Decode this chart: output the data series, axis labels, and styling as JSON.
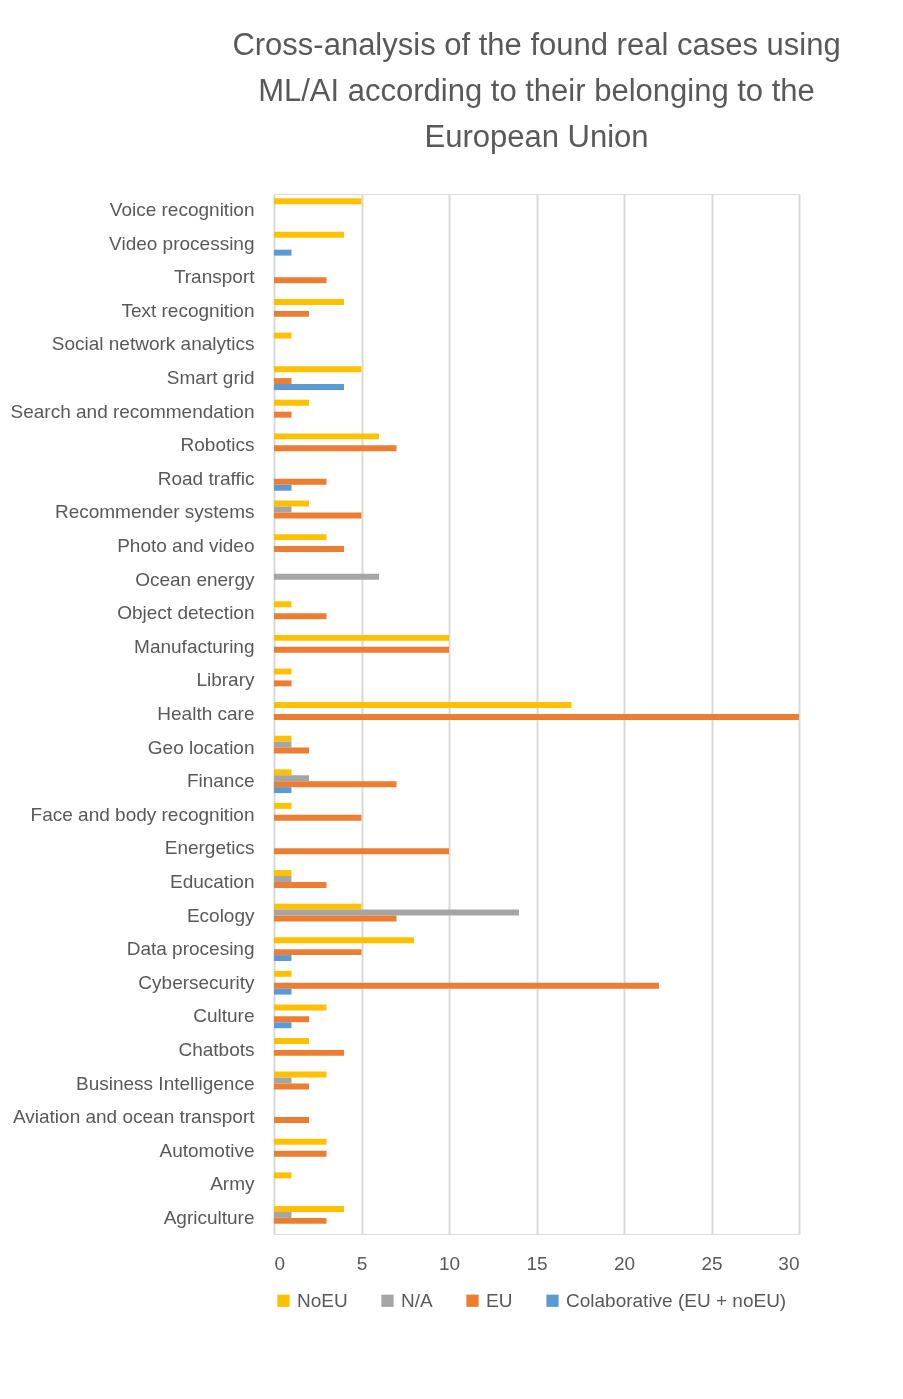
{
  "chart_data": {
    "type": "bar",
    "orientation": "horizontal",
    "title": "Cross-analysis of the found real cases using ML/AI according to their belonging to the European Union",
    "categories": [
      "Voice recognition",
      "Video processing",
      "Transport",
      "Text recognition",
      "Social network analytics",
      "Smart grid",
      "Search and recommendation",
      "Robotics",
      "Road traffic",
      "Recommender systems",
      "Photo and video",
      "Ocean energy",
      "Object detection",
      "Manufacturing",
      "Library",
      "Health care",
      "Geo location",
      "Finance",
      "Face and body recognition",
      "Energetics",
      "Education",
      "Ecology",
      "Data procesing",
      "Cybersecurity",
      "Culture",
      "Chatbots",
      "Business Intelligence",
      "Aviation and ocean transport",
      "Automotive",
      "Army",
      "Agriculture"
    ],
    "series": [
      {
        "name": "NoEU",
        "color": "#ffc000",
        "values": [
          5,
          4,
          0,
          4,
          1,
          5,
          2,
          6,
          0,
          2,
          3,
          0,
          1,
          10,
          1,
          17,
          1,
          1,
          1,
          0,
          1,
          5,
          8,
          1,
          3,
          2,
          3,
          0,
          3,
          1,
          4
        ]
      },
      {
        "name": "N/A",
        "color": "#a5a5a5",
        "values": [
          0,
          0,
          0,
          0,
          0,
          0,
          0,
          0,
          0,
          1,
          0,
          6,
          0,
          0,
          0,
          0,
          1,
          2,
          0,
          0,
          1,
          14,
          0,
          0,
          0,
          0,
          1,
          0,
          0,
          0,
          1
        ]
      },
      {
        "name": "EU",
        "color": "#ed7d31",
        "values": [
          0,
          0,
          3,
          2,
          0,
          1,
          1,
          7,
          3,
          5,
          4,
          0,
          3,
          10,
          1,
          30,
          2,
          7,
          5,
          10,
          3,
          7,
          5,
          22,
          2,
          4,
          2,
          2,
          3,
          0,
          3
        ]
      },
      {
        "name": "Colaborative (EU + noEU)",
        "color": "#5b9bd5",
        "values": [
          0,
          1,
          0,
          0,
          0,
          4,
          0,
          0,
          1,
          0,
          0,
          0,
          0,
          0,
          0,
          0,
          0,
          1,
          0,
          0,
          0,
          0,
          1,
          1,
          1,
          0,
          0,
          0,
          0,
          0,
          0
        ]
      }
    ],
    "xlim": [
      0,
      30
    ],
    "xticks": [
      0,
      5,
      10,
      15,
      20,
      25,
      30
    ],
    "grid": "x",
    "legend": "bottom"
  }
}
